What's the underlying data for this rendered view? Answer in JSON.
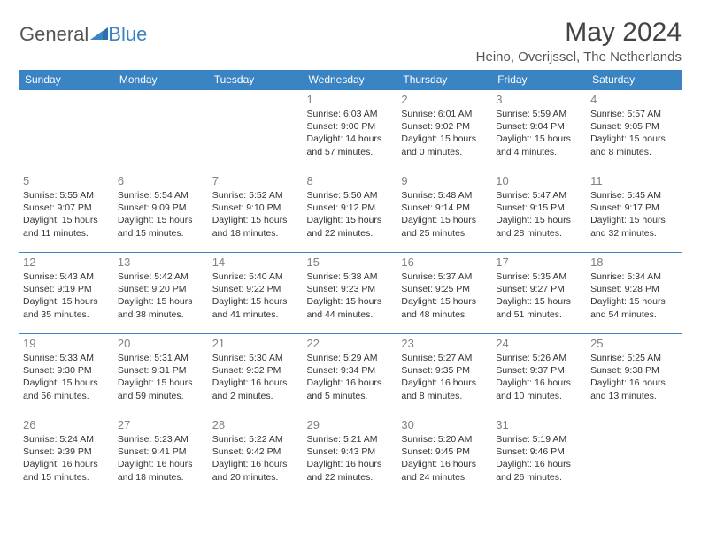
{
  "logo": {
    "general": "General",
    "blue": "Blue"
  },
  "title": "May 2024",
  "location": "Heino, Overijssel, The Netherlands",
  "colors": {
    "header_bg": "#3b84c4",
    "header_text": "#ffffff",
    "border": "#3b84c4",
    "daynum": "#808080",
    "body_text": "#333333",
    "title_text": "#444444"
  },
  "weekdays": [
    "Sunday",
    "Monday",
    "Tuesday",
    "Wednesday",
    "Thursday",
    "Friday",
    "Saturday"
  ],
  "weeks": [
    [
      null,
      null,
      null,
      {
        "n": "1",
        "sr": "Sunrise: 6:03 AM",
        "ss": "Sunset: 9:00 PM",
        "d1": "Daylight: 14 hours",
        "d2": "and 57 minutes."
      },
      {
        "n": "2",
        "sr": "Sunrise: 6:01 AM",
        "ss": "Sunset: 9:02 PM",
        "d1": "Daylight: 15 hours",
        "d2": "and 0 minutes."
      },
      {
        "n": "3",
        "sr": "Sunrise: 5:59 AM",
        "ss": "Sunset: 9:04 PM",
        "d1": "Daylight: 15 hours",
        "d2": "and 4 minutes."
      },
      {
        "n": "4",
        "sr": "Sunrise: 5:57 AM",
        "ss": "Sunset: 9:05 PM",
        "d1": "Daylight: 15 hours",
        "d2": "and 8 minutes."
      }
    ],
    [
      {
        "n": "5",
        "sr": "Sunrise: 5:55 AM",
        "ss": "Sunset: 9:07 PM",
        "d1": "Daylight: 15 hours",
        "d2": "and 11 minutes."
      },
      {
        "n": "6",
        "sr": "Sunrise: 5:54 AM",
        "ss": "Sunset: 9:09 PM",
        "d1": "Daylight: 15 hours",
        "d2": "and 15 minutes."
      },
      {
        "n": "7",
        "sr": "Sunrise: 5:52 AM",
        "ss": "Sunset: 9:10 PM",
        "d1": "Daylight: 15 hours",
        "d2": "and 18 minutes."
      },
      {
        "n": "8",
        "sr": "Sunrise: 5:50 AM",
        "ss": "Sunset: 9:12 PM",
        "d1": "Daylight: 15 hours",
        "d2": "and 22 minutes."
      },
      {
        "n": "9",
        "sr": "Sunrise: 5:48 AM",
        "ss": "Sunset: 9:14 PM",
        "d1": "Daylight: 15 hours",
        "d2": "and 25 minutes."
      },
      {
        "n": "10",
        "sr": "Sunrise: 5:47 AM",
        "ss": "Sunset: 9:15 PM",
        "d1": "Daylight: 15 hours",
        "d2": "and 28 minutes."
      },
      {
        "n": "11",
        "sr": "Sunrise: 5:45 AM",
        "ss": "Sunset: 9:17 PM",
        "d1": "Daylight: 15 hours",
        "d2": "and 32 minutes."
      }
    ],
    [
      {
        "n": "12",
        "sr": "Sunrise: 5:43 AM",
        "ss": "Sunset: 9:19 PM",
        "d1": "Daylight: 15 hours",
        "d2": "and 35 minutes."
      },
      {
        "n": "13",
        "sr": "Sunrise: 5:42 AM",
        "ss": "Sunset: 9:20 PM",
        "d1": "Daylight: 15 hours",
        "d2": "and 38 minutes."
      },
      {
        "n": "14",
        "sr": "Sunrise: 5:40 AM",
        "ss": "Sunset: 9:22 PM",
        "d1": "Daylight: 15 hours",
        "d2": "and 41 minutes."
      },
      {
        "n": "15",
        "sr": "Sunrise: 5:38 AM",
        "ss": "Sunset: 9:23 PM",
        "d1": "Daylight: 15 hours",
        "d2": "and 44 minutes."
      },
      {
        "n": "16",
        "sr": "Sunrise: 5:37 AM",
        "ss": "Sunset: 9:25 PM",
        "d1": "Daylight: 15 hours",
        "d2": "and 48 minutes."
      },
      {
        "n": "17",
        "sr": "Sunrise: 5:35 AM",
        "ss": "Sunset: 9:27 PM",
        "d1": "Daylight: 15 hours",
        "d2": "and 51 minutes."
      },
      {
        "n": "18",
        "sr": "Sunrise: 5:34 AM",
        "ss": "Sunset: 9:28 PM",
        "d1": "Daylight: 15 hours",
        "d2": "and 54 minutes."
      }
    ],
    [
      {
        "n": "19",
        "sr": "Sunrise: 5:33 AM",
        "ss": "Sunset: 9:30 PM",
        "d1": "Daylight: 15 hours",
        "d2": "and 56 minutes."
      },
      {
        "n": "20",
        "sr": "Sunrise: 5:31 AM",
        "ss": "Sunset: 9:31 PM",
        "d1": "Daylight: 15 hours",
        "d2": "and 59 minutes."
      },
      {
        "n": "21",
        "sr": "Sunrise: 5:30 AM",
        "ss": "Sunset: 9:32 PM",
        "d1": "Daylight: 16 hours",
        "d2": "and 2 minutes."
      },
      {
        "n": "22",
        "sr": "Sunrise: 5:29 AM",
        "ss": "Sunset: 9:34 PM",
        "d1": "Daylight: 16 hours",
        "d2": "and 5 minutes."
      },
      {
        "n": "23",
        "sr": "Sunrise: 5:27 AM",
        "ss": "Sunset: 9:35 PM",
        "d1": "Daylight: 16 hours",
        "d2": "and 8 minutes."
      },
      {
        "n": "24",
        "sr": "Sunrise: 5:26 AM",
        "ss": "Sunset: 9:37 PM",
        "d1": "Daylight: 16 hours",
        "d2": "and 10 minutes."
      },
      {
        "n": "25",
        "sr": "Sunrise: 5:25 AM",
        "ss": "Sunset: 9:38 PM",
        "d1": "Daylight: 16 hours",
        "d2": "and 13 minutes."
      }
    ],
    [
      {
        "n": "26",
        "sr": "Sunrise: 5:24 AM",
        "ss": "Sunset: 9:39 PM",
        "d1": "Daylight: 16 hours",
        "d2": "and 15 minutes."
      },
      {
        "n": "27",
        "sr": "Sunrise: 5:23 AM",
        "ss": "Sunset: 9:41 PM",
        "d1": "Daylight: 16 hours",
        "d2": "and 18 minutes."
      },
      {
        "n": "28",
        "sr": "Sunrise: 5:22 AM",
        "ss": "Sunset: 9:42 PM",
        "d1": "Daylight: 16 hours",
        "d2": "and 20 minutes."
      },
      {
        "n": "29",
        "sr": "Sunrise: 5:21 AM",
        "ss": "Sunset: 9:43 PM",
        "d1": "Daylight: 16 hours",
        "d2": "and 22 minutes."
      },
      {
        "n": "30",
        "sr": "Sunrise: 5:20 AM",
        "ss": "Sunset: 9:45 PM",
        "d1": "Daylight: 16 hours",
        "d2": "and 24 minutes."
      },
      {
        "n": "31",
        "sr": "Sunrise: 5:19 AM",
        "ss": "Sunset: 9:46 PM",
        "d1": "Daylight: 16 hours",
        "d2": "and 26 minutes."
      },
      null
    ]
  ]
}
